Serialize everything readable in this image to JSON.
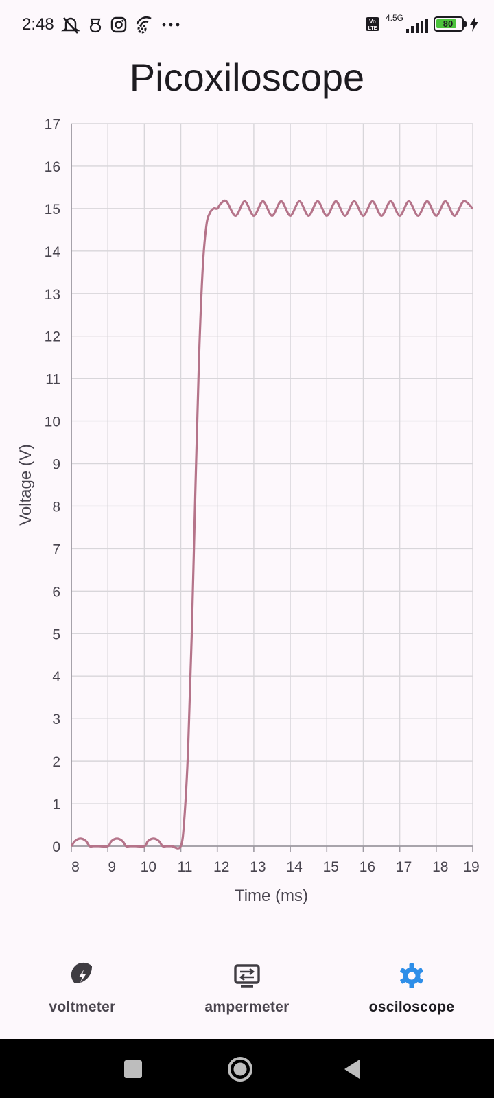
{
  "status_bar": {
    "time": "2:48",
    "network": "4.5G",
    "volte": "Vo LTE",
    "battery": "80",
    "icons": [
      "mute-icon",
      "bug-icon",
      "instagram-icon",
      "wifi-settings-icon",
      "more-dots-icon",
      "signal-icon",
      "battery-icon",
      "charging-icon"
    ]
  },
  "app": {
    "title": "Picoxiloscope"
  },
  "chart_data": {
    "type": "line",
    "title": "",
    "xlabel": "Time (ms)",
    "ylabel": "Voltage (V)",
    "xlim": [
      8,
      19
    ],
    "ylim": [
      0,
      17
    ],
    "x_ticks": [
      "8",
      "9",
      "10",
      "11",
      "12",
      "13",
      "14",
      "15",
      "16",
      "17",
      "18",
      "19"
    ],
    "y_ticks": [
      "0",
      "1",
      "2",
      "3",
      "4",
      "5",
      "6",
      "7",
      "8",
      "9",
      "10",
      "11",
      "12",
      "13",
      "14",
      "15",
      "16",
      "17"
    ],
    "grid": true,
    "line_color": "#b5748a",
    "series": [
      {
        "x": [
          8,
          8.1,
          8.25,
          8.4,
          8.5,
          8.6,
          8.75,
          9.0,
          9.1,
          9.25,
          9.4,
          9.5,
          9.6,
          9.75,
          10.0,
          10.1,
          10.25,
          10.4,
          10.5,
          10.6,
          10.75,
          11.0,
          11.1,
          11.2,
          11.3,
          11.4,
          11.5,
          11.6,
          11.7,
          11.8,
          11.9,
          12.0,
          12.1,
          12.25,
          12.5,
          12.75,
          13.0,
          13.25,
          13.5,
          13.75,
          14.0,
          14.25,
          14.5,
          14.75,
          15.0,
          15.25,
          15.5,
          15.75,
          16.0,
          16.25,
          16.5,
          16.75,
          17.0,
          17.25,
          17.5,
          17.75,
          18.0,
          18.25,
          18.5,
          18.75,
          19.0
        ],
        "y": [
          0,
          0.12,
          0.18,
          0.12,
          0,
          0,
          0,
          0,
          0.12,
          0.18,
          0.12,
          0,
          0,
          0,
          0,
          0.12,
          0.18,
          0.12,
          0,
          0,
          0,
          0,
          0.7,
          2.3,
          5.0,
          8.4,
          11.5,
          13.6,
          14.6,
          14.9,
          15.0,
          15.0,
          15.12,
          15.17,
          14.83,
          15.17,
          14.83,
          15.17,
          14.83,
          15.17,
          14.83,
          15.17,
          14.83,
          15.17,
          14.83,
          15.17,
          14.83,
          15.17,
          14.83,
          15.17,
          14.83,
          15.17,
          14.83,
          15.17,
          14.83,
          15.17,
          14.83,
          15.17,
          14.83,
          15.17,
          15.0
        ]
      }
    ]
  },
  "nav": {
    "items": [
      {
        "label": "voltmeter",
        "icon": "voltmeter-icon",
        "active": false
      },
      {
        "label": "ampermeter",
        "icon": "ampermeter-icon",
        "active": false
      },
      {
        "label": "osciloscope",
        "icon": "gear-icon",
        "active": true
      }
    ],
    "active_color": "#2e8ee8",
    "inactive_color": "#3f3c42"
  }
}
